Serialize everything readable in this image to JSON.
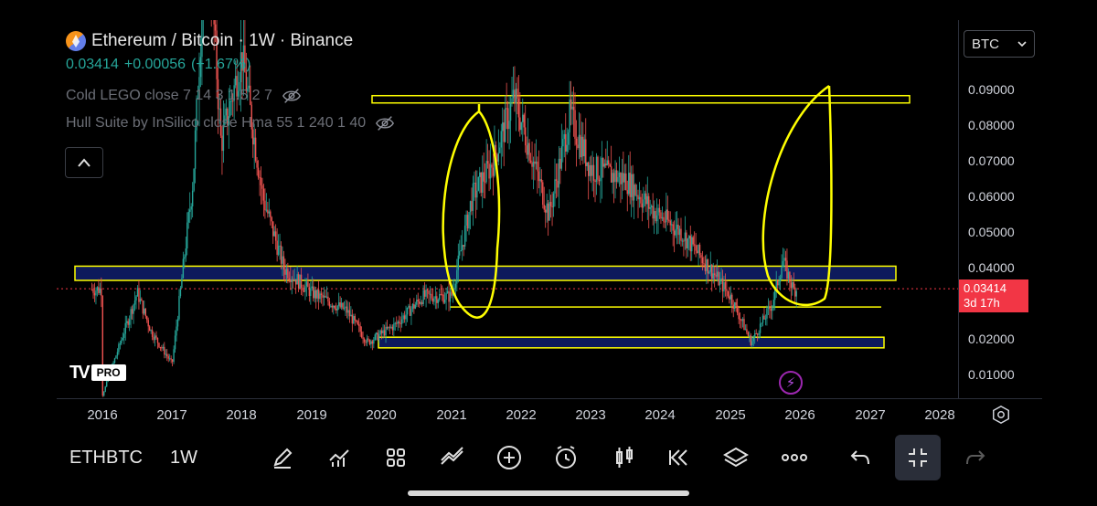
{
  "header": {
    "title": "Ethereum / Bitcoin · 1W · Binance",
    "last_price": "0.03414",
    "change": "+0.00056",
    "change_pct": "(+1.67%)"
  },
  "indicators": [
    {
      "label": "Cold LEGO close 7 14 3 1.5 2 7"
    },
    {
      "label": "Hull Suite by InSilico close Hma 55 1 240 1 40"
    }
  ],
  "currency": {
    "label": "BTC"
  },
  "price_tag": {
    "price": "0.03414",
    "countdown": "3d 17h"
  },
  "axis": {
    "price_ticks": [
      "0.09000",
      "0.08000",
      "0.07000",
      "0.06000",
      "0.05000",
      "0.04000",
      "0.02000",
      "0.01000"
    ],
    "years": [
      "2016",
      "2017",
      "2018",
      "2019",
      "2020",
      "2021",
      "2022",
      "2023",
      "2024",
      "2025",
      "2026",
      "2027",
      "2028"
    ]
  },
  "toolbar": {
    "symbol": "ETHBTC",
    "interval": "1W",
    "tools": [
      "pen-icon",
      "indicators-icon",
      "templates-icon",
      "line-tools-icon",
      "add-icon",
      "alert-icon",
      "candles-icon",
      "replay-icon",
      "layers-icon",
      "more-icon",
      "undo-icon",
      "collapse-icon",
      "redo-icon"
    ]
  },
  "branding": {
    "logo_text": "PRO"
  },
  "colors": {
    "up": "#26a69a",
    "down": "#ef5350",
    "highlight": "#ffff00",
    "zone_fill": "#0d1a5c",
    "price_tag": "#f23645"
  },
  "chart_data": {
    "type": "candlestick",
    "symbol": "ETHBTC",
    "timeframe": "1W",
    "ylim": [
      0.0,
      0.1
    ],
    "series": [
      {
        "x": 2016.0,
        "y": 0.004
      },
      {
        "x": 2016.5,
        "y": 0.033
      },
      {
        "x": 2016.7,
        "y": 0.022
      },
      {
        "x": 2017.0,
        "y": 0.013
      },
      {
        "x": 2017.3,
        "y": 0.065
      },
      {
        "x": 2017.5,
        "y": 0.14
      },
      {
        "x": 2017.7,
        "y": 0.075
      },
      {
        "x": 2018.0,
        "y": 0.1
      },
      {
        "x": 2018.3,
        "y": 0.06
      },
      {
        "x": 2018.6,
        "y": 0.04
      },
      {
        "x": 2019.0,
        "y": 0.033
      },
      {
        "x": 2019.5,
        "y": 0.028
      },
      {
        "x": 2019.8,
        "y": 0.019
      },
      {
        "x": 2020.2,
        "y": 0.024
      },
      {
        "x": 2020.6,
        "y": 0.032
      },
      {
        "x": 2021.0,
        "y": 0.032
      },
      {
        "x": 2021.3,
        "y": 0.06
      },
      {
        "x": 2021.6,
        "y": 0.07
      },
      {
        "x": 2021.9,
        "y": 0.088
      },
      {
        "x": 2022.1,
        "y": 0.075
      },
      {
        "x": 2022.4,
        "y": 0.055
      },
      {
        "x": 2022.7,
        "y": 0.083
      },
      {
        "x": 2023.0,
        "y": 0.068
      },
      {
        "x": 2023.5,
        "y": 0.065
      },
      {
        "x": 2023.9,
        "y": 0.056
      },
      {
        "x": 2024.3,
        "y": 0.05
      },
      {
        "x": 2024.7,
        "y": 0.04
      },
      {
        "x": 2025.0,
        "y": 0.032
      },
      {
        "x": 2025.3,
        "y": 0.019
      },
      {
        "x": 2025.6,
        "y": 0.03
      },
      {
        "x": 2025.75,
        "y": 0.042
      },
      {
        "x": 2025.9,
        "y": 0.034
      }
    ],
    "zones": [
      {
        "from": 0.0365,
        "to": 0.0405
      },
      {
        "from": 0.0175,
        "to": 0.0205
      }
    ],
    "levels": [
      0.0875,
      0.029
    ]
  }
}
